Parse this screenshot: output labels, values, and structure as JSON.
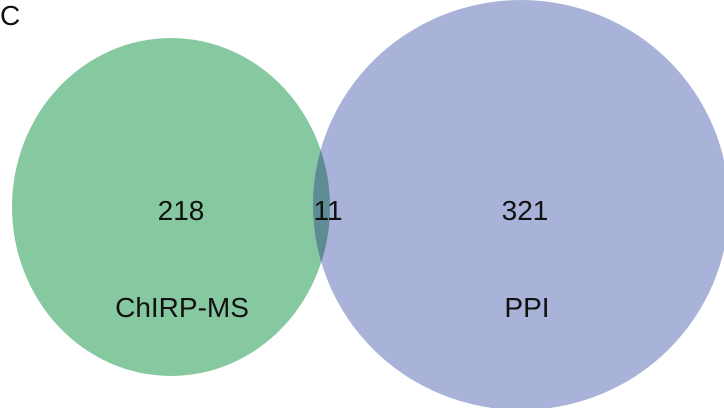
{
  "panel_label": "C",
  "venn": {
    "sets": [
      {
        "name": "ChIRP-MS",
        "unique_count": "218",
        "color": "#86c8a0"
      },
      {
        "name": "PPI",
        "unique_count": "321",
        "color": "#a9b2d8"
      }
    ],
    "intersection_count": "11",
    "intersection_color": "#5f8b95"
  }
}
